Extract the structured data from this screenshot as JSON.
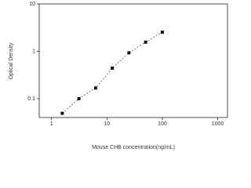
{
  "chart_data": {
    "type": "scatter",
    "x_label": "Mouse CHB concentration(ng/mL)",
    "y_label": "Optical Density",
    "x": [
      1.5625,
      3.125,
      6.25,
      12.5,
      25,
      50,
      100
    ],
    "values": [
      0.049,
      0.1,
      0.168,
      0.44,
      0.93,
      1.56,
      2.53
    ],
    "color": "#111111",
    "xscale": "log",
    "yscale": "log",
    "xlim": [
      0.6,
      1500
    ],
    "ylim": [
      0.04,
      10
    ],
    "xticks": [
      1,
      10,
      100,
      1000
    ],
    "yticks": [
      0.1,
      1,
      10
    ]
  }
}
